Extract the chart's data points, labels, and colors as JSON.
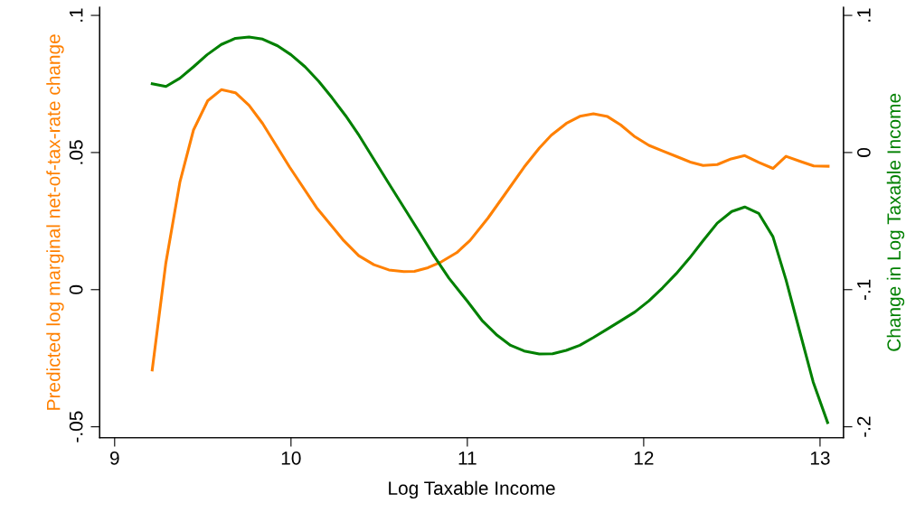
{
  "chart_data": {
    "type": "line",
    "xlabel": "Log Taxable Income",
    "ylabel": "Predicted log marginal net-of-tax-rate change",
    "y2label": "Change in Log Taxable Income",
    "xlim": [
      8.915,
      13.133
    ],
    "xticks": [
      9,
      10,
      11,
      12,
      13
    ],
    "ylim": [
      -0.054,
      0.103
    ],
    "yticks": [
      {
        "value": -0.05,
        "label": "-.05"
      },
      {
        "value": 0,
        "label": "0"
      },
      {
        "value": 0.05,
        "label": ".05"
      },
      {
        "value": 0.1,
        "label": ".1"
      }
    ],
    "y2lim": [
      -0.208,
      0.106
    ],
    "y2ticks": [
      {
        "value": -0.2,
        "label": "-.2"
      },
      {
        "value": -0.1,
        "label": "-.1"
      },
      {
        "value": 0,
        "label": "0"
      },
      {
        "value": 0.1,
        "label": ".1"
      }
    ],
    "grid": false,
    "legend": false,
    "line_style": "solid",
    "marker": "none",
    "series": [
      {
        "color": "#ff8000",
        "x": [
          9.213,
          9.29,
          9.37,
          9.447,
          9.528,
          9.605,
          9.685,
          9.762,
          9.839,
          9.992,
          10.145,
          10.299,
          10.384,
          10.47,
          10.555,
          10.64,
          10.7,
          10.777,
          10.854,
          10.94,
          11.015,
          11.117,
          11.22,
          11.322,
          11.408,
          11.476,
          11.561,
          11.638,
          11.715,
          11.795,
          11.869,
          11.945,
          12.03,
          12.107,
          12.192,
          12.269,
          12.337,
          12.417,
          12.496,
          12.573,
          12.653,
          12.733,
          12.807,
          12.892,
          12.964,
          13.046
        ],
        "values": [
          -0.0293,
          0.0096,
          0.0392,
          0.0582,
          0.0689,
          0.0729,
          0.0718,
          0.0672,
          0.0606,
          0.0447,
          0.0299,
          0.0179,
          0.0124,
          0.0091,
          0.0072,
          0.0066,
          0.0067,
          0.008,
          0.0102,
          0.0135,
          0.0179,
          0.0261,
          0.0354,
          0.0447,
          0.0516,
          0.0563,
          0.0606,
          0.0632,
          0.0641,
          0.0631,
          0.0601,
          0.056,
          0.0526,
          0.0506,
          0.0484,
          0.0464,
          0.0453,
          0.0456,
          0.0477,
          0.0489,
          0.0464,
          0.0442,
          0.0486,
          0.0467,
          0.0451,
          0.045
        ]
      },
      {
        "color": "#008000",
        "axis": "y2",
        "x": [
          9.213,
          9.291,
          9.37,
          9.447,
          9.524,
          9.605,
          9.685,
          9.762,
          9.839,
          9.924,
          10.0,
          10.08,
          10.157,
          10.233,
          10.31,
          10.386,
          10.47,
          10.555,
          10.64,
          10.726,
          10.81,
          10.896,
          10.998,
          11.083,
          11.169,
          11.245,
          11.322,
          11.408,
          11.484,
          11.561,
          11.638,
          11.715,
          11.792,
          11.869,
          11.951,
          12.03,
          12.107,
          12.184,
          12.26,
          12.337,
          12.417,
          12.499,
          12.573,
          12.653,
          12.733,
          12.807,
          12.884,
          12.961,
          13.043
        ],
        "values": [
          0.0502,
          0.0482,
          0.0542,
          0.0625,
          0.0713,
          0.0788,
          0.0833,
          0.0842,
          0.0827,
          0.0778,
          0.0713,
          0.0625,
          0.052,
          0.0399,
          0.0268,
          0.0125,
          -0.005,
          -0.0226,
          -0.0401,
          -0.0577,
          -0.0752,
          -0.0917,
          -0.1081,
          -0.1224,
          -0.1333,
          -0.1406,
          -0.1447,
          -0.1469,
          -0.1467,
          -0.1443,
          -0.1406,
          -0.1349,
          -0.1289,
          -0.1228,
          -0.1162,
          -0.1081,
          -0.0987,
          -0.0884,
          -0.077,
          -0.0643,
          -0.0515,
          -0.043,
          -0.0397,
          -0.0445,
          -0.0614,
          -0.0928,
          -0.1301,
          -0.1673,
          -0.1969
        ]
      }
    ]
  }
}
